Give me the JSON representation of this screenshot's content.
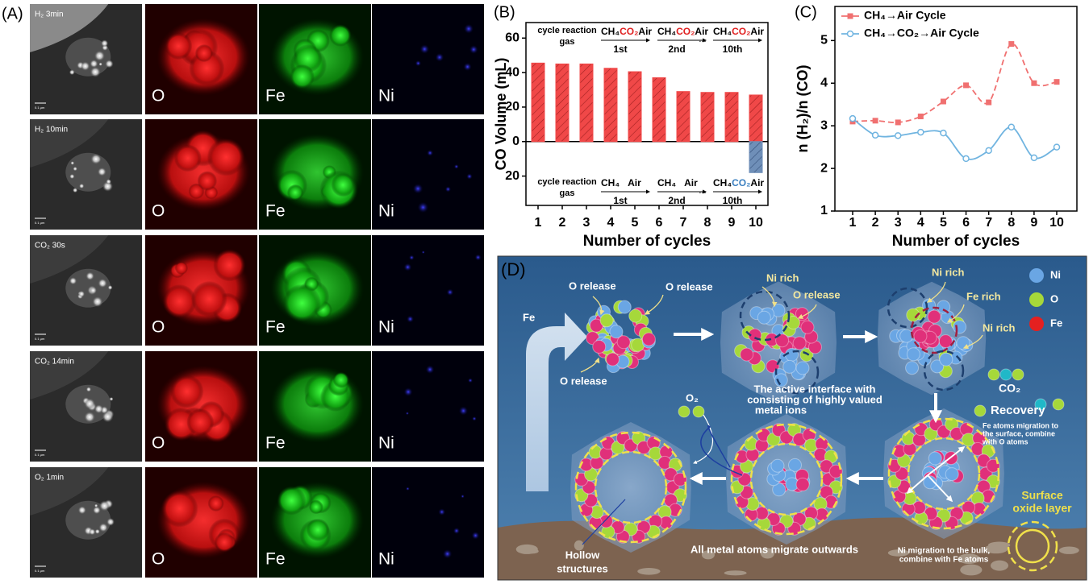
{
  "chart_data": [
    {
      "type": "bar",
      "panel": "(B)",
      "xlabel": "Number of cycles",
      "ylabel": "CO Volume (mL)",
      "categories": [
        "1",
        "2",
        "3",
        "4",
        "5",
        "6",
        "7",
        "8",
        "9",
        "10"
      ],
      "series": [
        {
          "color": "#f04848",
          "values": [
            45.5,
            45,
            45,
            42.5,
            40.5,
            37,
            29,
            28.5,
            28.5,
            27
          ]
        },
        {
          "color": "#6f8fb8",
          "values": [
            null,
            null,
            null,
            null,
            null,
            null,
            null,
            null,
            null,
            -18
          ]
        }
      ],
      "ylim": [
        -37,
        69
      ],
      "yticks": [
        {
          "value": -20,
          "label": "20"
        },
        0,
        20,
        40,
        60
      ],
      "annotations": {
        "top_label": [
          "cycle reaction",
          "gas"
        ],
        "top_steps": [
          {
            "parts": [
              "CH₄",
              "CO₂",
              "Air"
            ],
            "colors": [
              "#000",
              "#e02020",
              "#000"
            ],
            "ordinal": "1st"
          },
          {
            "parts": [
              "CH₄",
              "CO₂",
              "Air"
            ],
            "colors": [
              "#000",
              "#e02020",
              "#000"
            ],
            "ordinal": "2nd"
          },
          {
            "parts": [
              "CH₄",
              "CO₂",
              "Air"
            ],
            "colors": [
              "#000",
              "#e02020",
              "#000"
            ],
            "ordinal": "10th"
          }
        ],
        "bottom_label": [
          "cycle reaction",
          "gas"
        ],
        "bottom_steps": [
          {
            "parts": [
              "CH₄",
              "Air"
            ],
            "colors": [
              "#000",
              "#000"
            ],
            "ordinal": "1st"
          },
          {
            "parts": [
              "CH₄",
              "Air"
            ],
            "colors": [
              "#000",
              "#000"
            ],
            "ordinal": "2nd"
          },
          {
            "parts": [
              "CH₄",
              "CO₂",
              "Air"
            ],
            "colors": [
              "#000",
              "#3a7fc0",
              "#000"
            ],
            "ordinal": "10th"
          }
        ],
        "ellipsis": "..."
      }
    },
    {
      "type": "line",
      "panel": "(C)",
      "xlabel": "Number of cycles",
      "ylabel": "n (H₂)/n (CO)",
      "categories": [
        "1",
        "2",
        "3",
        "4",
        "5",
        "6",
        "7",
        "8",
        "9",
        "10"
      ],
      "series": [
        {
          "name": "CH₄→Air  Cycle",
          "color": "#f07070",
          "dash": true,
          "marker": "square",
          "values": [
            3.1,
            3.12,
            3.08,
            3.22,
            3.57,
            3.95,
            3.55,
            4.92,
            4.0,
            4.03
          ]
        },
        {
          "name": "CH₄→CO₂→Air  Cycle",
          "color": "#70b4e0",
          "dash": false,
          "marker": "circle",
          "values": [
            3.17,
            2.78,
            2.77,
            2.85,
            2.83,
            2.23,
            2.42,
            2.97,
            2.25,
            2.5
          ]
        }
      ],
      "ylim": [
        1,
        5.8
      ],
      "yticks": [
        1,
        2,
        3,
        4,
        5
      ],
      "legend": "upper-left"
    }
  ],
  "panel_a": {
    "label": "(A)",
    "elements": [
      "O",
      "Fe",
      "Ni"
    ],
    "scale_bar": "0.1 μm",
    "rows": [
      {
        "condition": "H₂ 3min"
      },
      {
        "condition": "H₂ 10min"
      },
      {
        "condition": "CO₂ 30s"
      },
      {
        "condition": "CO₂ 14min"
      },
      {
        "condition": "O₂ 1min"
      }
    ]
  },
  "panel_d": {
    "label": "(D)",
    "legend": [
      "Ni",
      "O",
      "Fe"
    ],
    "labels": [
      "Fe",
      "O release",
      "O release",
      "O release",
      "Ni rich",
      "O release",
      "The active interface with",
      "consisting of highly valued",
      "metal ions",
      "Ni rich",
      "Fe rich",
      "Ni rich",
      "CO₂",
      "Recovery",
      "Fe atoms migration to",
      "the surface, combine",
      "with O atoms",
      "O₂",
      "Surface",
      "oxide layer",
      "Ni migration to the bulk,",
      "combine with Fe atoms",
      "All metal atoms migrate outwards",
      "Hollow",
      "structures"
    ]
  }
}
